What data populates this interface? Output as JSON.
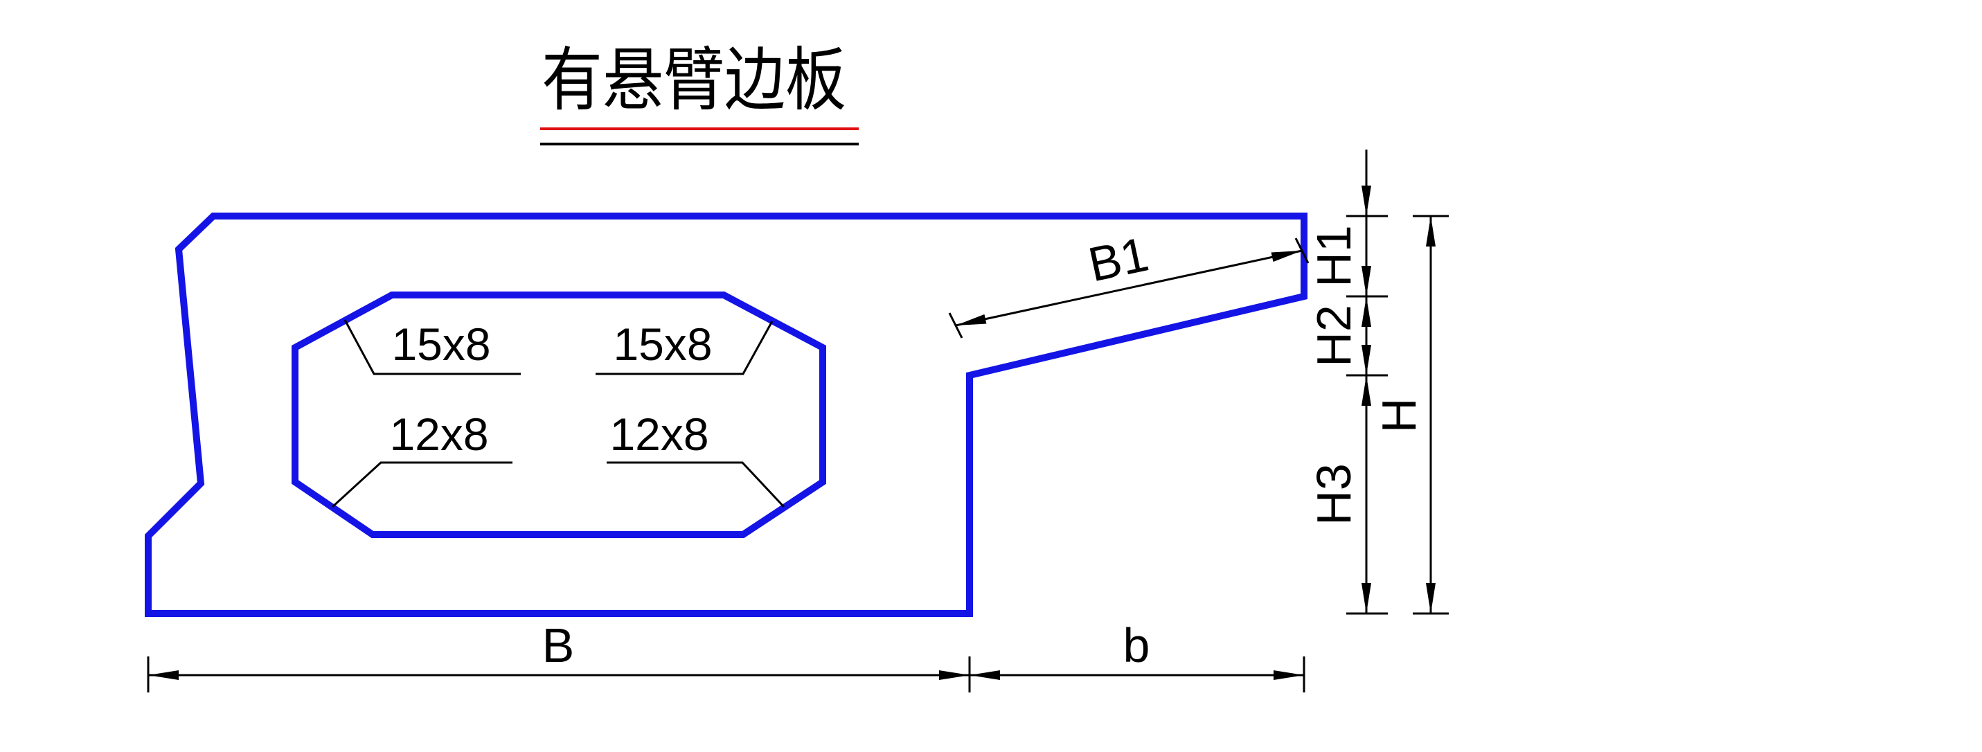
{
  "title": "有悬臂边板",
  "colors": {
    "outline": "#1414e6",
    "title_underline_red": "#e01010",
    "ink": "#000000"
  },
  "dimensions": {
    "B": "B",
    "b": "b",
    "B1": "B1",
    "H": "H",
    "H1": "H1",
    "H2": "H2",
    "H3": "H3"
  },
  "chamfers": {
    "top_left": "15x8",
    "top_right": "15x8",
    "bottom_left": "12x8",
    "bottom_right": "12x8"
  }
}
